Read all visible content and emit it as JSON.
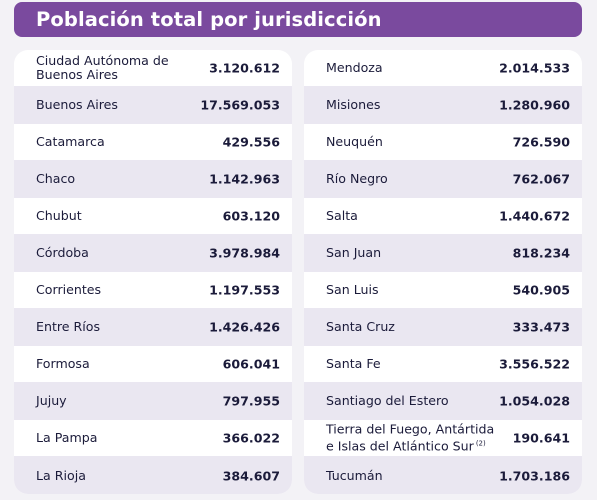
{
  "header": {
    "title": "Población total por jurisdicción"
  },
  "left": [
    {
      "name": "Ciudad Autónoma de Buenos Aires",
      "value": "3.120.612"
    },
    {
      "name": "Buenos Aires",
      "value": "17.569.053"
    },
    {
      "name": "Catamarca",
      "value": "429.556"
    },
    {
      "name": "Chaco",
      "value": "1.142.963"
    },
    {
      "name": "Chubut",
      "value": "603.120"
    },
    {
      "name": "Córdoba",
      "value": "3.978.984"
    },
    {
      "name": "Corrientes",
      "value": "1.197.553"
    },
    {
      "name": "Entre Ríos",
      "value": "1.426.426"
    },
    {
      "name": "Formosa",
      "value": "606.041"
    },
    {
      "name": "Jujuy",
      "value": "797.955"
    },
    {
      "name": "La Pampa",
      "value": "366.022"
    },
    {
      "name": "La Rioja",
      "value": "384.607"
    }
  ],
  "right": [
    {
      "name": "Mendoza",
      "value": "2.014.533"
    },
    {
      "name": "Misiones",
      "value": "1.280.960"
    },
    {
      "name": "Neuquén",
      "value": "726.590"
    },
    {
      "name": "Río Negro",
      "value": "762.067"
    },
    {
      "name": "Salta",
      "value": "1.440.672"
    },
    {
      "name": "San Juan",
      "value": "818.234"
    },
    {
      "name": "San Luis",
      "value": "540.905"
    },
    {
      "name": "Santa Cruz",
      "value": "333.473"
    },
    {
      "name": "Santa Fe",
      "value": "3.556.522"
    },
    {
      "name": "Santiago del Estero",
      "value": "1.054.028"
    },
    {
      "name": "Tierra del Fuego, Antártida e Islas del Atlántico Sur",
      "note": "(2)",
      "value": "190.641"
    },
    {
      "name": "Tucumán",
      "value": "1.703.186"
    }
  ]
}
